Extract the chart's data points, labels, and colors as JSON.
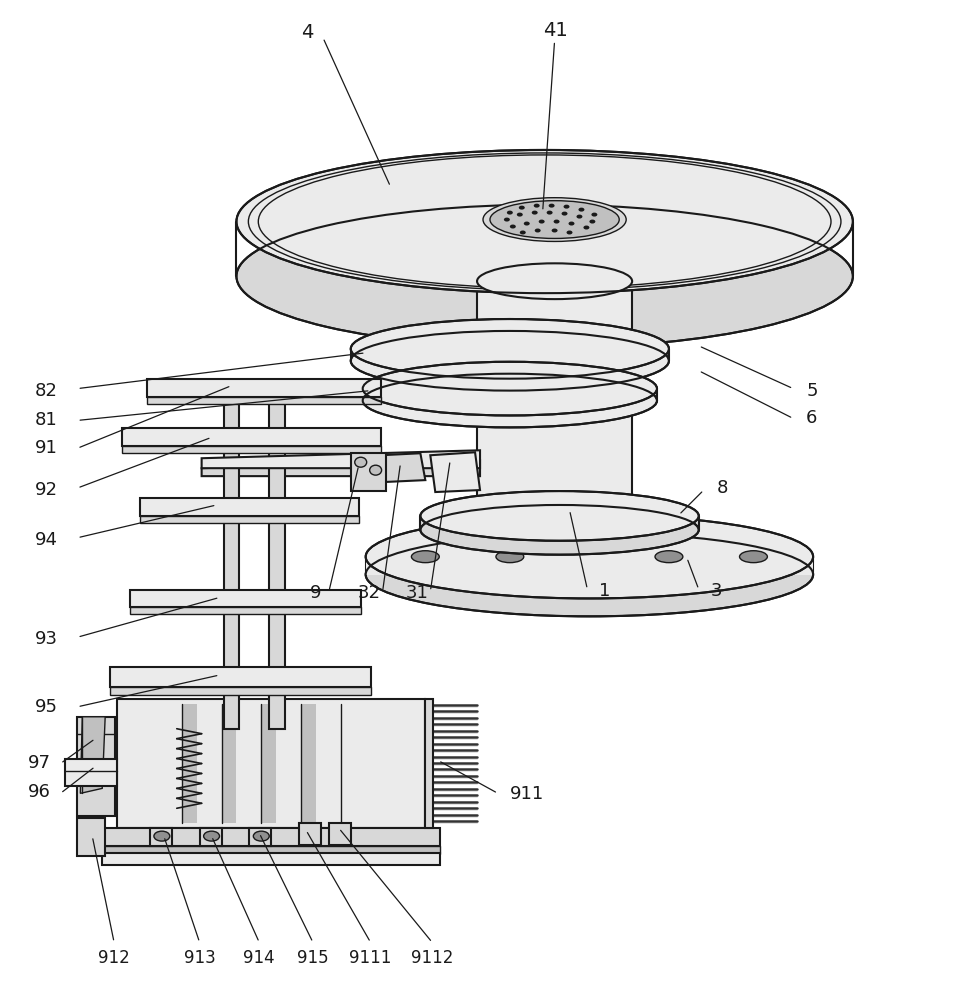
{
  "bg_color": "#ffffff",
  "line_color": "#1a1a1a",
  "figsize": [
    9.7,
    10.0
  ],
  "dpi": 100,
  "lw_main": 1.5,
  "lw_thin": 1.0,
  "fc_light": "#ebebeb",
  "fc_mid": "#d8d8d8",
  "fc_dark": "#c0c0c0",
  "fc_darkest": "#909090"
}
